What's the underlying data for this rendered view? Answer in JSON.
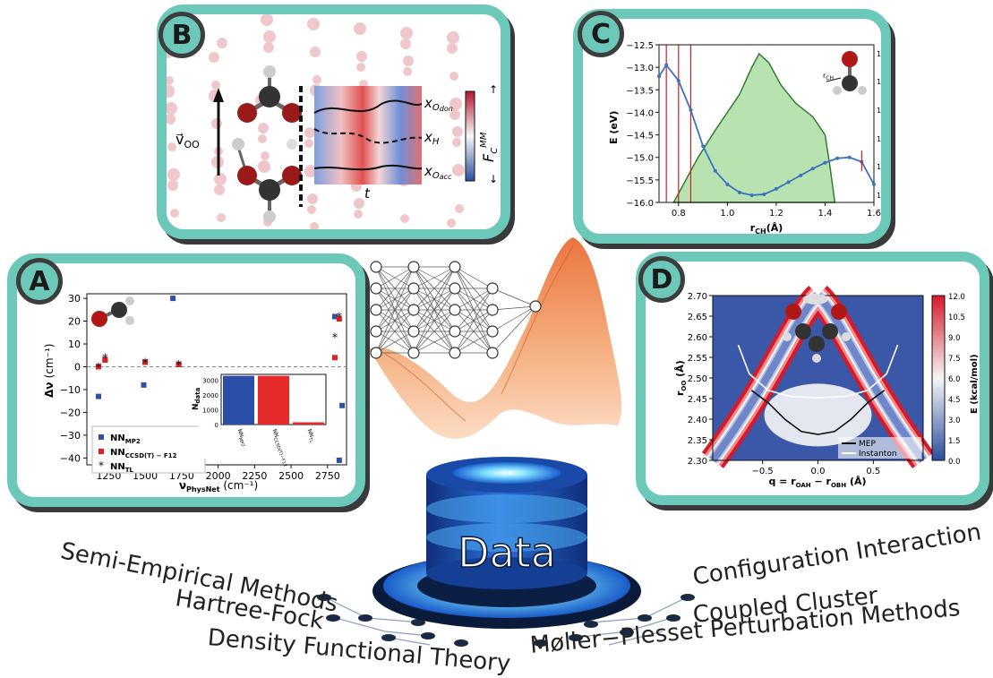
{
  "panel_labels": {
    "a": "A",
    "b": "B",
    "c": "C",
    "d": "D"
  },
  "center": {
    "data_label": "Data"
  },
  "methods_left": [
    "Semi-Empirical Methods",
    "Hartree-Fock",
    "Density Functional Theory"
  ],
  "methods_right": [
    "Configuration Interaction",
    "Coupled Cluster",
    "Møller−Plesset Perturbation Methods"
  ],
  "panel_b": {
    "vec": "v⃗",
    "vec_sub": "OO",
    "t_label": "t",
    "x_don": "x",
    "x_don_sub": "O",
    "x_don_sub2": "don",
    "x_h": "x",
    "x_h_sub": "H",
    "x_acc": "x",
    "x_acc_sub": "O",
    "x_acc_sub2": "acc",
    "cbar_main": "F",
    "cbar_sub": "C",
    "cbar_sup": "MM"
  },
  "chart_data": [
    {
      "panel": "A",
      "type": "scatter",
      "xlabel": "ν",
      "xlabel_sub": "PhysNet",
      "xlabel_unit": "(cm⁻¹)",
      "ylabel": "Δν",
      "ylabel_unit": "(cm⁻¹)",
      "xlim": [
        1100,
        2880
      ],
      "ylim": [
        -43,
        32
      ],
      "xticks": [
        "1250",
        "1500",
        "1750",
        "2000",
        "2250",
        "2500",
        "2750"
      ],
      "yticks": [
        "30",
        "20",
        "10",
        "0",
        "−10",
        "−20",
        "−30",
        "−40"
      ],
      "series": [
        {
          "name": "NN",
          "sub": "MP2",
          "color": "#3050a8",
          "marker": "square",
          "points": [
            [
              1180,
              -13
            ],
            [
              1225,
              3
            ],
            [
              1490,
              -8
            ],
            [
              1500,
              2
            ],
            [
              1690,
              30
            ],
            [
              1730,
              1
            ],
            [
              2800,
              22
            ],
            [
              2830,
              -41
            ],
            [
              2850,
              -17
            ]
          ]
        },
        {
          "name": "NN",
          "sub": "CCSD(T) − F12",
          "color": "#e02020",
          "marker": "square",
          "points": [
            [
              1180,
              0
            ],
            [
              1225,
              3
            ],
            [
              1500,
              2
            ],
            [
              1730,
              1
            ],
            [
              2800,
              4
            ],
            [
              2830,
              21
            ]
          ]
        },
        {
          "name": "NN",
          "sub": "TL",
          "color": "#111111",
          "marker": "star",
          "points": [
            [
              1180,
              0
            ],
            [
              1225,
              4
            ],
            [
              1500,
              2
            ],
            [
              1730,
              1
            ],
            [
              2800,
              13
            ],
            [
              2830,
              22
            ]
          ]
        }
      ],
      "inset": {
        "ylabel": "N",
        "ylabel_sub": "data",
        "yticks": [
          "3000",
          "2000",
          "1000",
          "0"
        ],
        "ylim": [
          0,
          3400
        ],
        "categories": [
          "NN",
          "NN",
          "NN"
        ],
        "category_subs": [
          "MP2",
          "CCSD(T)−F12",
          "TL"
        ],
        "values": [
          3300,
          3300,
          150
        ],
        "colors": [
          "#2b4ea8",
          "#e42a2a",
          "#e42a2a"
        ]
      }
    },
    {
      "panel": "C",
      "type": "line",
      "xlabel": "r",
      "xlabel_sub": "CH",
      "xlabel_unit": "(Å)",
      "ylabel": "E (eV)",
      "y2label": "Log(P(r",
      "y2label_sub": "CH",
      "y2label_end": "))",
      "xlim": [
        0.72,
        1.6
      ],
      "ylim": [
        -16.0,
        -12.5
      ],
      "xticks": [
        "0.8",
        "1.0",
        "1.2",
        "1.4",
        "1.6"
      ],
      "yticks": [
        "−12.5",
        "−13.0",
        "−13.5",
        "−14.0",
        "−14.5",
        "−15.0",
        "−15.5",
        "−16.0"
      ],
      "y2ticks": [
        "10¹",
        "10⁰",
        "10⁻¹",
        "10⁻²",
        "10⁻³",
        "10⁻⁴"
      ],
      "mol_label": "r",
      "mol_label_sub": "CH",
      "energy": [
        [
          0.72,
          -13.2
        ],
        [
          0.75,
          -12.95
        ],
        [
          0.8,
          -13.3
        ],
        [
          0.85,
          -13.95
        ],
        [
          0.9,
          -14.75
        ],
        [
          0.95,
          -15.3
        ],
        [
          1.0,
          -15.6
        ],
        [
          1.05,
          -15.78
        ],
        [
          1.1,
          -15.84
        ],
        [
          1.15,
          -15.82
        ],
        [
          1.2,
          -15.7
        ],
        [
          1.25,
          -15.55
        ],
        [
          1.3,
          -15.4
        ],
        [
          1.35,
          -15.25
        ],
        [
          1.4,
          -15.12
        ],
        [
          1.45,
          -15.02
        ],
        [
          1.5,
          -15.0
        ],
        [
          1.55,
          -15.1
        ],
        [
          1.6,
          -15.6
        ]
      ],
      "vlines": [
        0.75,
        0.8,
        0.85
      ],
      "density": [
        [
          0.78,
          -16.0
        ],
        [
          0.88,
          -15.0
        ],
        [
          0.95,
          -14.4
        ],
        [
          1.0,
          -14.0
        ],
        [
          1.05,
          -13.6
        ],
        [
          1.1,
          -13.0
        ],
        [
          1.13,
          -12.7
        ],
        [
          1.17,
          -12.9
        ],
        [
          1.22,
          -13.4
        ],
        [
          1.28,
          -13.8
        ],
        [
          1.35,
          -14.1
        ],
        [
          1.4,
          -14.5
        ],
        [
          1.42,
          -15.2
        ],
        [
          1.44,
          -16.0
        ]
      ]
    },
    {
      "panel": "D",
      "type": "heatmap",
      "xlabel": "q = r",
      "xlabel_sub1": "OAH",
      "xlabel_mid": " − r",
      "xlabel_sub2": "OBH",
      "xlabel_unit": " (Å)",
      "ylabel": "r",
      "ylabel_sub": "OO",
      "ylabel_unit": "(Å)",
      "cbar_label": "E (kcal/mol)",
      "xlim": [
        -0.95,
        0.95
      ],
      "ylim": [
        2.3,
        2.7
      ],
      "xticks": [
        "−0.5",
        "0.0",
        "0.5"
      ],
      "yticks": [
        "2.70",
        "2.65",
        "2.60",
        "2.55",
        "2.50",
        "2.45",
        "2.40",
        "2.35",
        "2.30"
      ],
      "cbar_ticks": [
        "12.0",
        "10.5",
        "9.0",
        "7.5",
        "6.0",
        "4.5",
        "3.0",
        "1.5",
        "0.0"
      ],
      "legend": [
        "MEP",
        "Instanton"
      ],
      "mep": [
        [
          -0.6,
          2.47
        ],
        [
          -0.45,
          2.44
        ],
        [
          -0.3,
          2.4
        ],
        [
          -0.15,
          2.37
        ],
        [
          0,
          2.363
        ],
        [
          0.15,
          2.37
        ],
        [
          0.3,
          2.4
        ],
        [
          0.45,
          2.44
        ],
        [
          0.6,
          2.47
        ]
      ],
      "instanton": [
        [
          -0.72,
          2.58
        ],
        [
          -0.62,
          2.51
        ],
        [
          -0.45,
          2.47
        ],
        [
          -0.25,
          2.455
        ],
        [
          0,
          2.452
        ],
        [
          0.25,
          2.455
        ],
        [
          0.45,
          2.47
        ],
        [
          0.62,
          2.51
        ],
        [
          0.72,
          2.58
        ]
      ]
    }
  ]
}
